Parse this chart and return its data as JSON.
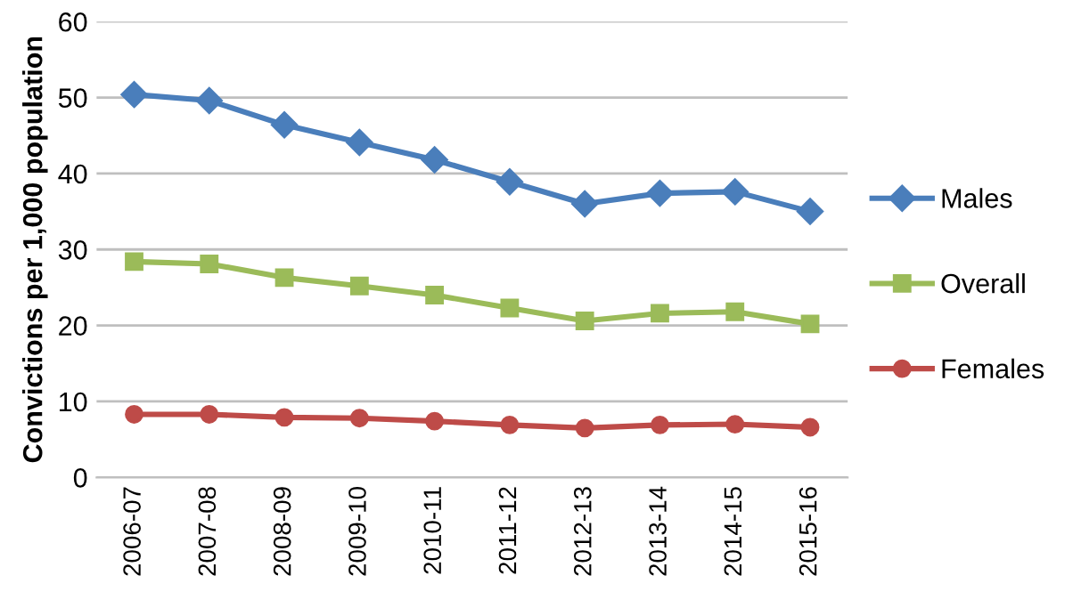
{
  "chart_data": {
    "type": "line",
    "ylabel": "Convictions per 1,000 population",
    "categories": [
      "2006-07",
      "2007-08",
      "2008-09",
      "2009-10",
      "2010-11",
      "2011-12",
      "2012-13",
      "2013-14",
      "2014-15",
      "2015-16"
    ],
    "series": [
      {
        "name": "Males",
        "color": "#4a7ebb",
        "marker": "diamond",
        "values": [
          50.4,
          49.6,
          46.4,
          44.1,
          41.8,
          38.9,
          36.0,
          37.4,
          37.6,
          35.0
        ]
      },
      {
        "name": "Overall",
        "color": "#9bbb59",
        "marker": "square",
        "values": [
          28.4,
          28.1,
          26.3,
          25.2,
          24.0,
          22.3,
          20.6,
          21.6,
          21.8,
          20.2
        ]
      },
      {
        "name": "Females",
        "color": "#be4b48",
        "marker": "circle",
        "values": [
          8.3,
          8.3,
          7.9,
          7.8,
          7.4,
          6.9,
          6.5,
          6.9,
          7.0,
          6.6
        ]
      }
    ],
    "ylim": [
      0,
      60
    ],
    "yticks": [
      0,
      10,
      20,
      30,
      40,
      50,
      60
    ],
    "grid": "y",
    "legend": "right"
  }
}
